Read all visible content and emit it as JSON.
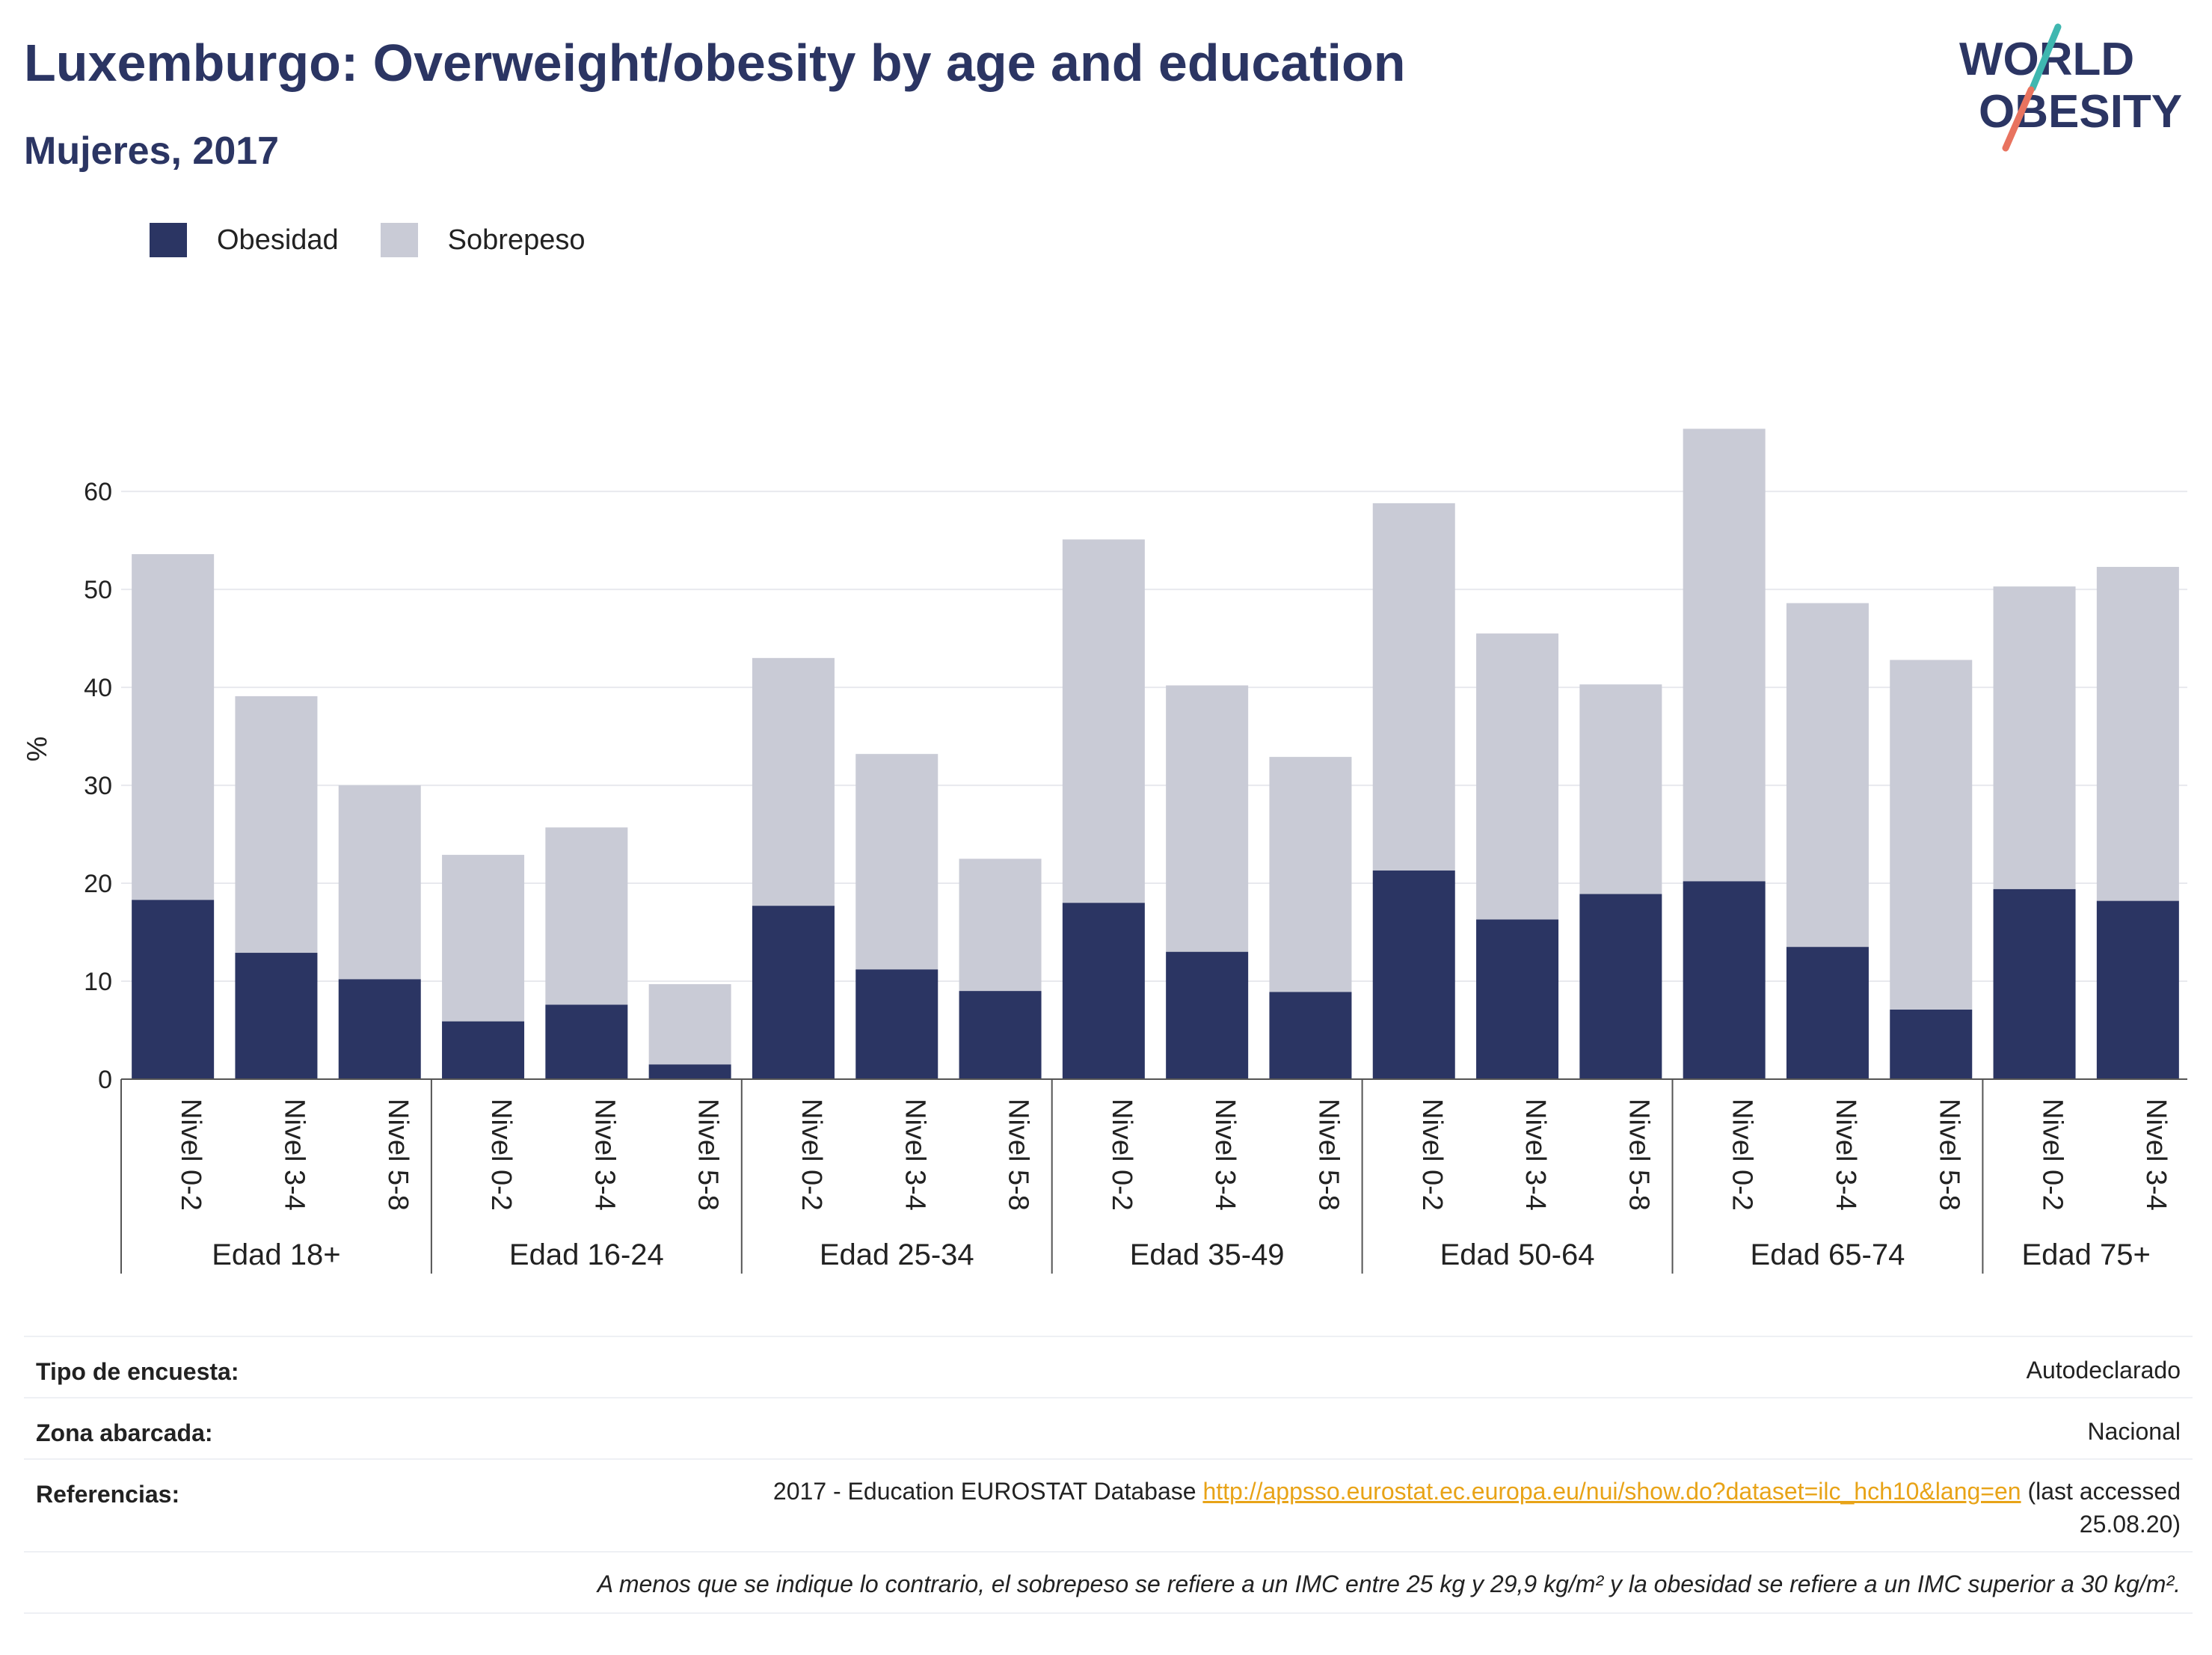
{
  "header": {
    "title": "Luxemburgo: Overweight/obesity by age and education",
    "subtitle": "Mujeres, 2017"
  },
  "logo": {
    "line1": "WORLD",
    "line2": "OBESITY"
  },
  "colors": {
    "obesity": "#2b3563",
    "overweight": "#c9cbd6",
    "accent_teal": "#3fb7b0",
    "accent_red": "#e8735f",
    "link": "#e8a317"
  },
  "chart_data": {
    "type": "bar",
    "stacked": true,
    "ylabel": "%",
    "ylim": [
      0,
      72
    ],
    "yticks": [
      0,
      10,
      20,
      30,
      40,
      50,
      60
    ],
    "grid": true,
    "legend_position": "top-left",
    "groups": [
      {
        "label": "Edad 18+",
        "categories": [
          "Nivel 0-2",
          "Nivel 3-4",
          "Nivel 5-8"
        ]
      },
      {
        "label": "Edad 16-24",
        "categories": [
          "Nivel 0-2",
          "Nivel 3-4",
          "Nivel 5-8"
        ]
      },
      {
        "label": "Edad 25-34",
        "categories": [
          "Nivel 0-2",
          "Nivel 3-4",
          "Nivel 5-8"
        ]
      },
      {
        "label": "Edad 35-49",
        "categories": [
          "Nivel 0-2",
          "Nivel 3-4",
          "Nivel 5-8"
        ]
      },
      {
        "label": "Edad 50-64",
        "categories": [
          "Nivel 0-2",
          "Nivel 3-4",
          "Nivel 5-8"
        ]
      },
      {
        "label": "Edad 65-74",
        "categories": [
          "Nivel 0-2",
          "Nivel 3-4",
          "Nivel 5-8"
        ]
      },
      {
        "label": "Edad 75+",
        "categories": [
          "Nivel 0-2",
          "Nivel 3-4"
        ]
      }
    ],
    "series": [
      {
        "name": "Obesidad",
        "values": [
          18.3,
          12.9,
          10.2,
          5.9,
          7.6,
          1.5,
          17.7,
          11.2,
          9.0,
          18.0,
          13.0,
          8.9,
          21.3,
          16.3,
          18.9,
          20.2,
          13.5,
          7.1,
          19.4,
          18.2
        ]
      },
      {
        "name": "Sobrepeso",
        "values": [
          35.3,
          26.2,
          19.8,
          17.0,
          18.1,
          8.2,
          25.3,
          22.0,
          13.5,
          37.1,
          27.2,
          24.0,
          37.5,
          29.2,
          21.4,
          46.2,
          35.1,
          35.7,
          30.9,
          34.1
        ]
      }
    ]
  },
  "info": {
    "survey_type_label": "Tipo de encuesta:",
    "survey_type_value": "Autodeclarado",
    "area_label": "Zona abarcada:",
    "area_value": "Nacional",
    "references_label": "Referencias:",
    "references_prefix": "2017 - Education EUROSTAT Database",
    "references_link": "http://appsso.eurostat.ec.europa.eu/nui/show.do?dataset=ilc_hch10&lang=en",
    "references_suffix_1": "(last accessed",
    "references_suffix_2": "25.08.20)",
    "note": "A menos que se indique lo contrario, el sobrepeso se refiere a un IMC entre 25 kg y 29,9 kg/m² y la obesidad se refiere a un IMC superior a 30 kg/m²."
  }
}
